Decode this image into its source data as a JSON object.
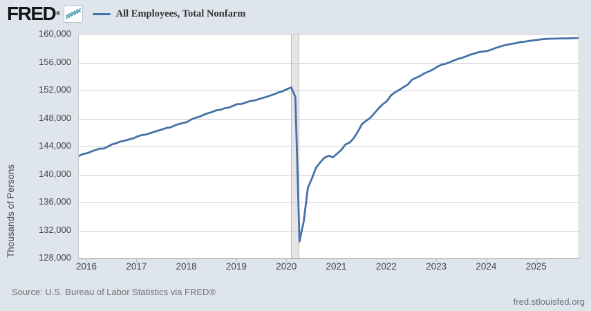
{
  "brand": {
    "logo_text": "FRED",
    "registered_mark": "®"
  },
  "legend": {
    "label": "All Employees, Total Nonfarm"
  },
  "axes": {
    "y_title": "Thousands of Persons",
    "y_ticks": [
      "160,000",
      "156,000",
      "152,000",
      "148,000",
      "144,000",
      "140,000",
      "136,000",
      "132,000",
      "128,000"
    ],
    "x_ticks": [
      "2016",
      "2017",
      "2018",
      "2019",
      "2020",
      "2021",
      "2022",
      "2023",
      "2024",
      "2025"
    ]
  },
  "colors": {
    "background": "#dfe5ed",
    "series_line": "#4572a7",
    "recession_band": "#e6e6e6",
    "gridline": "#cccccc"
  },
  "chart_data": {
    "type": "line",
    "title": "All Employees, Total Nonfarm",
    "ylabel": "Thousands of Persons",
    "xlabel": "",
    "frequency": "monthly",
    "x_start": "2015-11",
    "x_end": "2025-11",
    "ylim": [
      128000,
      160000
    ],
    "y_tick_step": 4000,
    "xlabel_years": [
      2016,
      2017,
      2018,
      2019,
      2020,
      2021,
      2022,
      2023,
      2024,
      2025
    ],
    "grid": "horizontal",
    "legend_position": "top-left",
    "recession_band": {
      "start": "2020-02",
      "end": "2020-04"
    },
    "x": [
      "2015-11",
      "2015-12",
      "2016-01",
      "2016-02",
      "2016-03",
      "2016-04",
      "2016-05",
      "2016-06",
      "2016-07",
      "2016-08",
      "2016-09",
      "2016-10",
      "2016-11",
      "2016-12",
      "2017-01",
      "2017-02",
      "2017-03",
      "2017-04",
      "2017-05",
      "2017-06",
      "2017-07",
      "2017-08",
      "2017-09",
      "2017-10",
      "2017-11",
      "2017-12",
      "2018-01",
      "2018-02",
      "2018-03",
      "2018-04",
      "2018-05",
      "2018-06",
      "2018-07",
      "2018-08",
      "2018-09",
      "2018-10",
      "2018-11",
      "2018-12",
      "2019-01",
      "2019-02",
      "2019-03",
      "2019-04",
      "2019-05",
      "2019-06",
      "2019-07",
      "2019-08",
      "2019-09",
      "2019-10",
      "2019-11",
      "2019-12",
      "2020-01",
      "2020-02",
      "2020-03",
      "2020-04",
      "2020-05",
      "2020-06",
      "2020-07",
      "2020-08",
      "2020-09",
      "2020-10",
      "2020-11",
      "2020-12",
      "2021-01",
      "2021-02",
      "2021-03",
      "2021-04",
      "2021-05",
      "2021-06",
      "2021-07",
      "2021-08",
      "2021-09",
      "2021-10",
      "2021-11",
      "2021-12",
      "2022-01",
      "2022-02",
      "2022-03",
      "2022-04",
      "2022-05",
      "2022-06",
      "2022-07",
      "2022-08",
      "2022-09",
      "2022-10",
      "2022-11",
      "2022-12",
      "2023-01",
      "2023-02",
      "2023-03",
      "2023-04",
      "2023-05",
      "2023-06",
      "2023-07",
      "2023-08",
      "2023-09",
      "2023-10",
      "2023-11",
      "2023-12",
      "2024-01",
      "2024-02",
      "2024-03",
      "2024-04",
      "2024-05",
      "2024-06",
      "2024-07",
      "2024-08",
      "2024-09",
      "2024-10",
      "2024-11",
      "2024-12",
      "2025-01",
      "2025-02",
      "2025-03",
      "2025-04",
      "2025-05",
      "2025-06",
      "2025-07",
      "2025-08",
      "2025-09",
      "2025-10",
      "2025-11"
    ],
    "values": [
      142640,
      142920,
      143050,
      143280,
      143510,
      143680,
      143710,
      144000,
      144310,
      144470,
      144720,
      144830,
      145000,
      145150,
      145410,
      145620,
      145700,
      145880,
      146080,
      146260,
      146440,
      146650,
      146730,
      147000,
      147210,
      147360,
      147500,
      147860,
      148090,
      148270,
      148540,
      148760,
      148930,
      149180,
      149240,
      149460,
      149570,
      149800,
      150060,
      150070,
      150260,
      150480,
      150560,
      150740,
      150910,
      151080,
      151290,
      151490,
      151740,
      151900,
      152210,
      152450,
      151060,
      130420,
      133290,
      138100,
      139490,
      141000,
      141750,
      142410,
      142690,
      142450,
      142960,
      143500,
      144280,
      144550,
      145160,
      146120,
      147200,
      147680,
      148100,
      148790,
      149450,
      150040,
      150510,
      151330,
      151770,
      152120,
      152480,
      152860,
      153540,
      153830,
      154110,
      154470,
      154720,
      154980,
      155380,
      155660,
      155810,
      156030,
      156290,
      156500,
      156670,
      156880,
      157130,
      157290,
      157470,
      157580,
      157640,
      157830,
      158060,
      158250,
      158430,
      158560,
      158690,
      158770,
      158930,
      158970,
      159070,
      159160,
      159230,
      159310,
      159380,
      159400,
      159420,
      159430,
      159460,
      159450,
      159480,
      159500,
      159520
    ]
  },
  "footer": {
    "source": "Source: U.S. Bureau of Labor Statistics via FRED®",
    "site": "fred.stlouisfed.org"
  }
}
